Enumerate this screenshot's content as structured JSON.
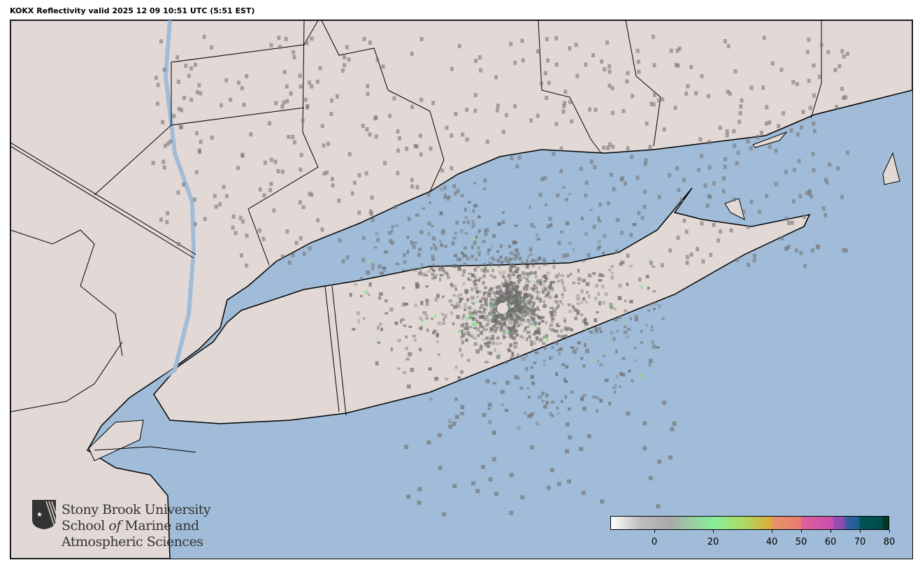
{
  "title": "KOKX Reflectivity valid 2025 12 09 10:51 UTC (5:51 EST)",
  "colors": {
    "ocean": "#a0bcd8",
    "land": "#e2d9d6",
    "border": "#000000",
    "echo": "#6e6e6e"
  },
  "logo": {
    "line1": "Stony Brook University",
    "line2_a": "School ",
    "line2_b": "of",
    "line2_c": " Marine and",
    "line3": "Atmospheric Sciences"
  },
  "colorbar": {
    "label_ticks": [
      "0",
      "20",
      "40",
      "50",
      "60",
      "70",
      "80"
    ],
    "tick_values": [
      0,
      20,
      40,
      50,
      60,
      70,
      80
    ],
    "range": [
      -15,
      80
    ],
    "stops": [
      {
        "v": -15,
        "c": "#ffffff"
      },
      {
        "v": -5,
        "c": "#bdbdbd"
      },
      {
        "v": 5,
        "c": "#aaaaaa"
      },
      {
        "v": 20,
        "c": "#88ee99"
      },
      {
        "v": 30,
        "c": "#aadd66"
      },
      {
        "v": 40,
        "c": "#ddaa33"
      },
      {
        "v": 40.1,
        "c": "#e8946a"
      },
      {
        "v": 50,
        "c": "#e87a70"
      },
      {
        "v": 50.1,
        "c": "#e0609a"
      },
      {
        "v": 61,
        "c": "#c84fb0"
      },
      {
        "v": 61.1,
        "c": "#9a4fb5"
      },
      {
        "v": 65,
        "c": "#8a4aae"
      },
      {
        "v": 65.1,
        "c": "#3a5fa5"
      },
      {
        "v": 70,
        "c": "#1a5f95"
      },
      {
        "v": 70.1,
        "c": "#005555"
      },
      {
        "v": 78,
        "c": "#004a4a"
      },
      {
        "v": 78.1,
        "c": "#003a20"
      },
      {
        "v": 80,
        "c": "#003a20"
      }
    ]
  }
}
